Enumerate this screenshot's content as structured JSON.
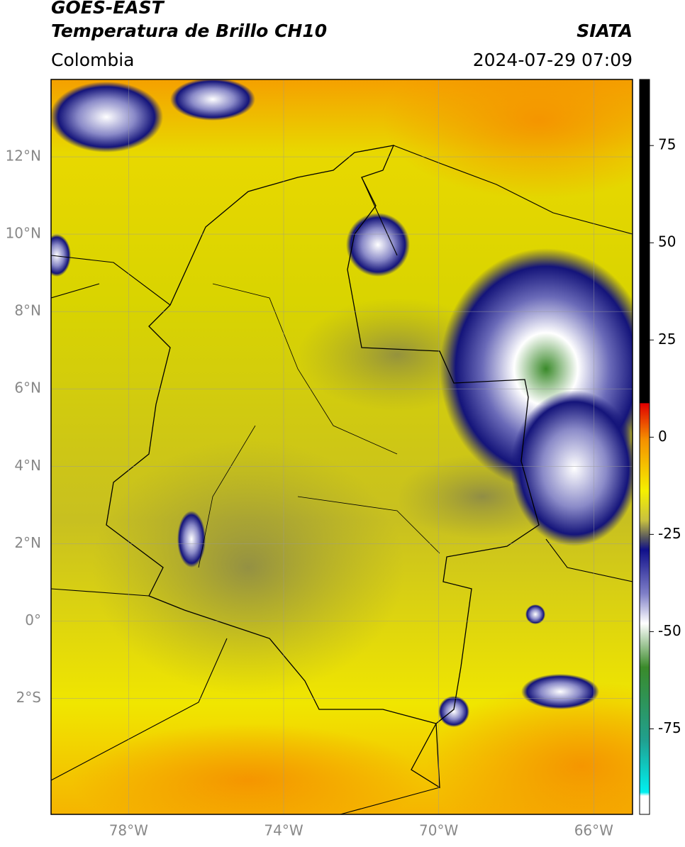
{
  "header": {
    "title": "GOES-EAST",
    "subtitle": "Temperatura de Brillo CH10",
    "region": "Colombia",
    "source": "SIATA",
    "timestamp": "2024-07-29 07:09"
  },
  "map": {
    "xlim": [
      -80,
      -65
    ],
    "ylim": [
      -5,
      14
    ],
    "lat_ticks": [
      {
        "value": 12,
        "label": "12°N"
      },
      {
        "value": 10,
        "label": "10°N"
      },
      {
        "value": 8,
        "label": "8°N"
      },
      {
        "value": 6,
        "label": "6°N"
      },
      {
        "value": 4,
        "label": "4°N"
      },
      {
        "value": 2,
        "label": "2°N"
      },
      {
        "value": 0,
        "label": "0°"
      },
      {
        "value": -2,
        "label": "2°S"
      }
    ],
    "lon_ticks": [
      {
        "value": -78,
        "label": "78°W"
      },
      {
        "value": -74,
        "label": "74°W"
      },
      {
        "value": -70,
        "label": "70°W"
      },
      {
        "value": -66,
        "label": "66°W"
      }
    ]
  },
  "colorbar": {
    "lim": [
      -97,
      92
    ],
    "ticks": [
      75,
      50,
      25,
      0,
      -25,
      -50,
      -75
    ]
  }
}
